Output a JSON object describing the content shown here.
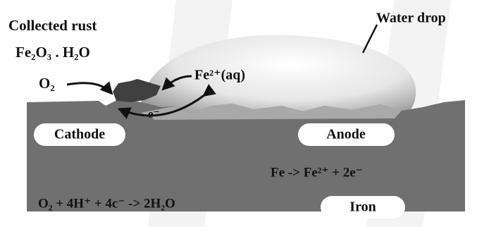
{
  "labels": {
    "collected_rust": "Collected rust",
    "rust_formula": "Fe₂O₃ . H₂O",
    "water_drop": "Water drop",
    "oxygen": "O₂",
    "ferrous_ion": "Fe²⁺(aq)",
    "electron": "e⁻",
    "cathode": "Cathode",
    "anode": "Anode",
    "anode_reaction": "Fe -> Fe²⁺ + 2e⁻",
    "cathode_reaction": "O₂ + 4H⁺ + 4c⁻ -> 2H₂O",
    "iron": "Iron"
  }
}
